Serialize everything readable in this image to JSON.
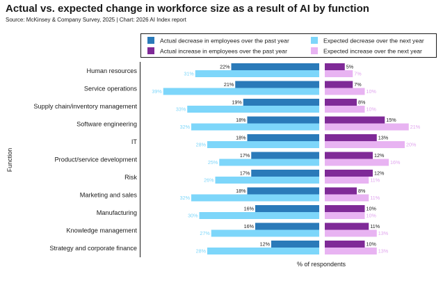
{
  "header": {
    "title": "Actual vs. expected change in workforce size as a result of AI by function",
    "subtitle": "Source: McKinsey & Company Survey, 2025 | Chart: 2026 AI Index report"
  },
  "colors": {
    "actual_decrease": "#2a7ab9",
    "expected_decrease": "#7dd6fa",
    "actual_increase": "#7f2a97",
    "expected_increase": "#e8b3f2",
    "actual_decrease_label": "#1a1a1a",
    "expected_decrease_label": "#7dd6fa",
    "actual_increase_label": "#1a1a1a",
    "expected_increase_label": "#e0a4ee"
  },
  "chart_data": {
    "type": "bar",
    "orientation": "horizontal",
    "layout": "diverging",
    "title": "Actual vs. expected change in workforce size as a result of AI by function",
    "xlabel": "% of respondents",
    "ylabel": "Function",
    "legend_position": "top-right",
    "categories": [
      "Human resources",
      "Service operations",
      "Supply chain/inventory management",
      "Software engineering",
      "IT",
      "Product/service development",
      "Risk",
      "Marketing and sales",
      "Manufacturing",
      "Knowledge management",
      "Strategy and corporate finance"
    ],
    "series": [
      {
        "name": "Actual decrease in employees over the past year",
        "side": "decrease",
        "values": [
          22,
          21,
          19,
          18,
          18,
          17,
          17,
          18,
          16,
          16,
          12
        ]
      },
      {
        "name": "Expected decrease over the next year",
        "side": "decrease",
        "values": [
          31,
          39,
          33,
          32,
          28,
          25,
          26,
          32,
          30,
          27,
          28
        ]
      },
      {
        "name": "Actual increase in employees over the past year",
        "side": "increase",
        "values": [
          5,
          7,
          8,
          15,
          13,
          12,
          12,
          8,
          10,
          11,
          10
        ]
      },
      {
        "name": "Expected increase over the next year",
        "side": "increase",
        "values": [
          7,
          10,
          10,
          21,
          20,
          16,
          11,
          11,
          10,
          13,
          13
        ]
      }
    ],
    "value_suffix": "%"
  }
}
